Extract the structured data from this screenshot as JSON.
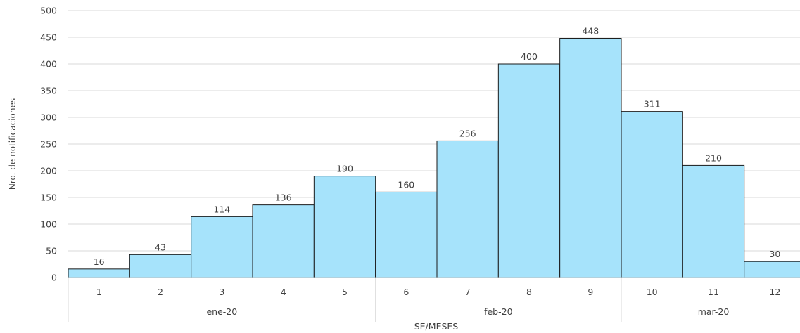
{
  "chart_data": {
    "type": "bar",
    "categories": [
      "1",
      "2",
      "3",
      "4",
      "5",
      "6",
      "7",
      "8",
      "9",
      "10",
      "11",
      "12"
    ],
    "groups": [
      {
        "label": "ene-20",
        "span": [
          0,
          4
        ]
      },
      {
        "label": "feb-20",
        "span": [
          5,
          8
        ]
      },
      {
        "label": "mar-20",
        "span": [
          9,
          11
        ]
      }
    ],
    "values": [
      16,
      43,
      114,
      136,
      190,
      160,
      256,
      400,
      448,
      311,
      210,
      30
    ],
    "xlabel": "SE/MESES",
    "ylabel": "Nro. de notificaciones",
    "ylim": [
      0,
      500
    ],
    "yticks": [
      0,
      50,
      100,
      150,
      200,
      250,
      300,
      350,
      400,
      450,
      500
    ],
    "grid": true,
    "bar_color": "#a6e3fb",
    "bar_edge_color": "#1a1a1a"
  }
}
